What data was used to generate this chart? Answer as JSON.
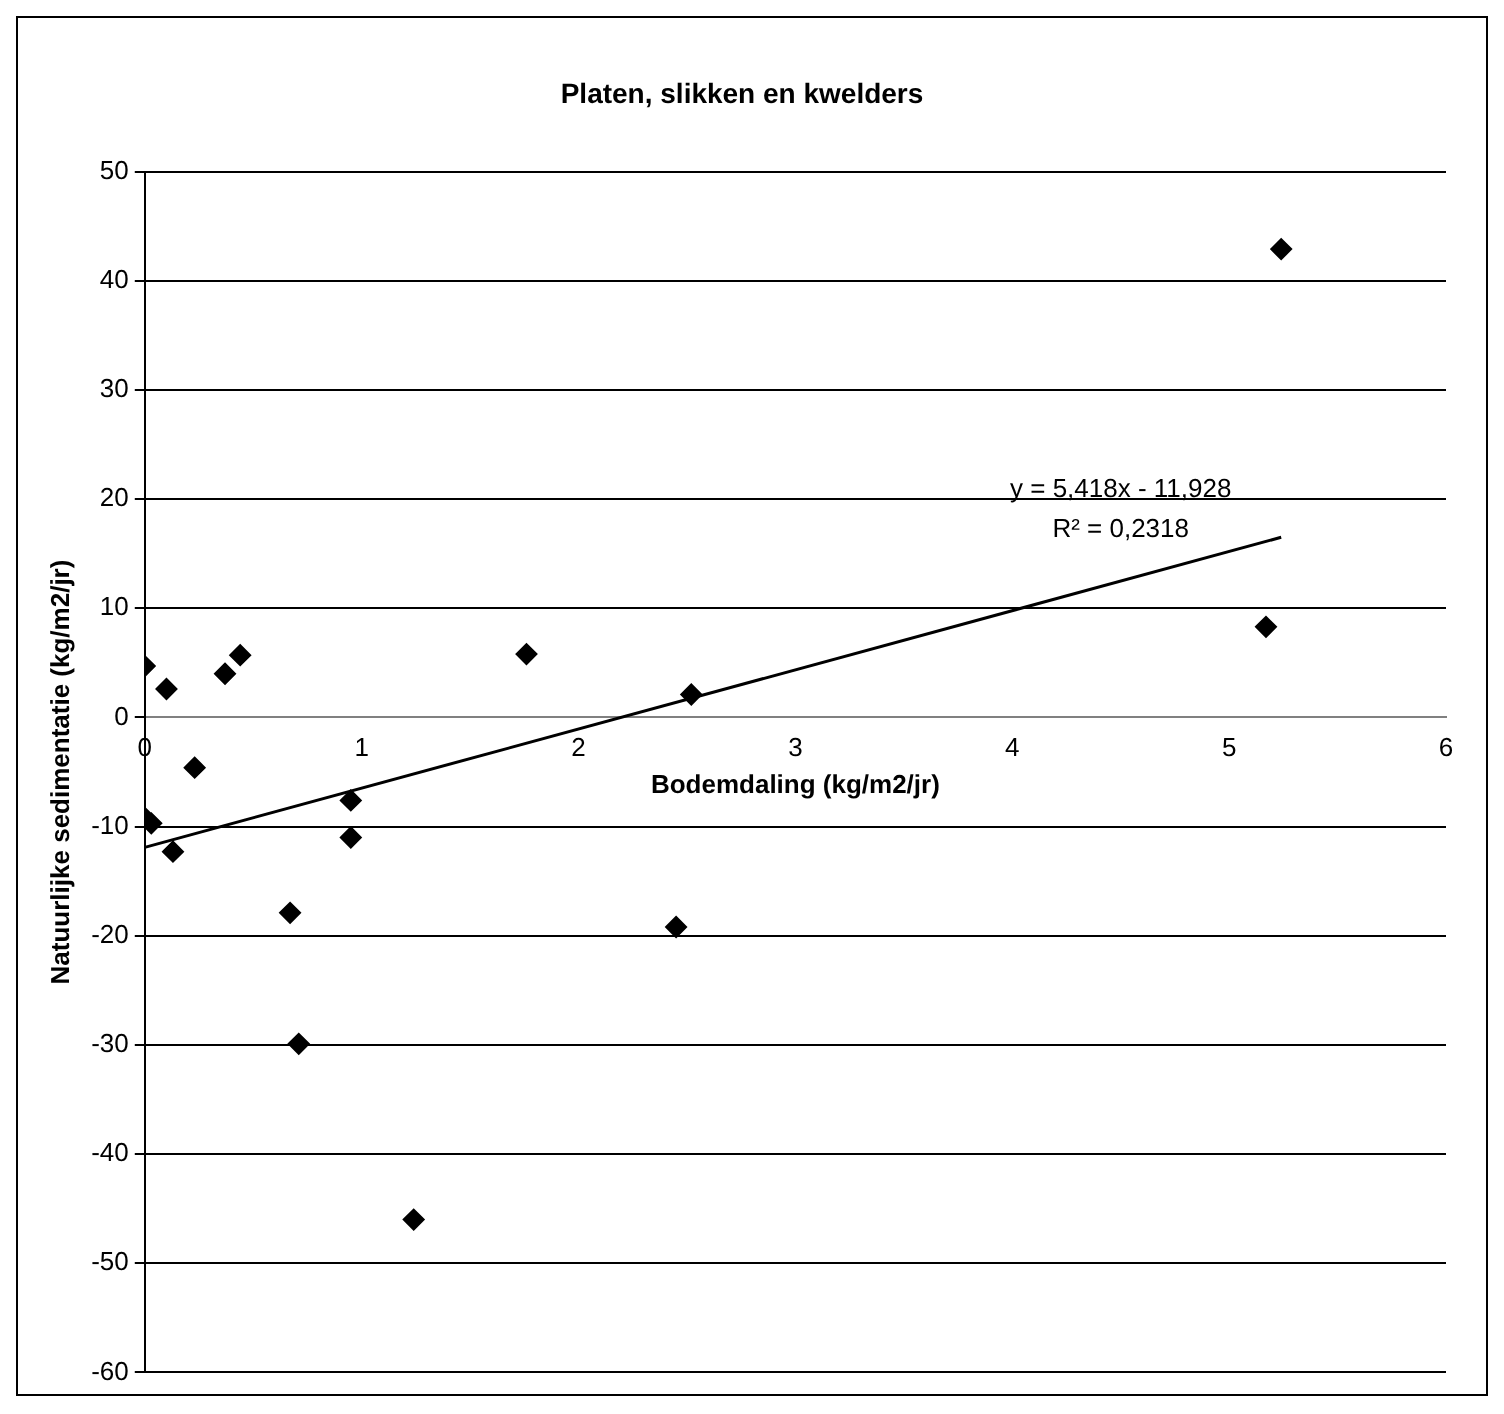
{
  "chart_data": {
    "type": "scatter",
    "title": "Platen, slikken en kwelders",
    "xlabel": "Bodemdaling (kg/m2/jr)",
    "ylabel": "Natuurlijke sedimentatie (kg/m2/jr)",
    "series": [
      {
        "type": "scatter",
        "color": "#000000",
        "marker": "diamond",
        "x": [
          0,
          0.1,
          0.37,
          0.44,
          0.23,
          0,
          0.03,
          0.13,
          0.95,
          0.95,
          0.67,
          0.71,
          1.76,
          2.52,
          2.45,
          1.24,
          5.17,
          5.24
        ],
        "values": [
          4.7,
          2.6,
          4.0,
          5.7,
          -4.6,
          -9.2,
          -9.7,
          -12.3,
          -7.6,
          -11.0,
          -17.9,
          -29.9,
          5.8,
          2.1,
          -19.2,
          -46,
          8.3,
          42.9
        ]
      },
      {
        "type": "line",
        "color": "#000000",
        "marker": "none",
        "x": [
          0,
          5.24
        ],
        "values": [
          -11.9,
          16.5
        ]
      }
    ],
    "annotations": [
      "y = 5,418x - 11,928",
      "R² = 0,2318"
    ],
    "xlim": [
      0,
      6
    ],
    "xticks": [
      0,
      1,
      2,
      3,
      4,
      5,
      6
    ],
    "ylim": [
      -60,
      50
    ],
    "yticks": [
      -60,
      -50,
      -40,
      -30,
      -20,
      -10,
      0,
      10,
      20,
      30,
      40,
      50
    ],
    "grid": "y",
    "legend": false
  }
}
